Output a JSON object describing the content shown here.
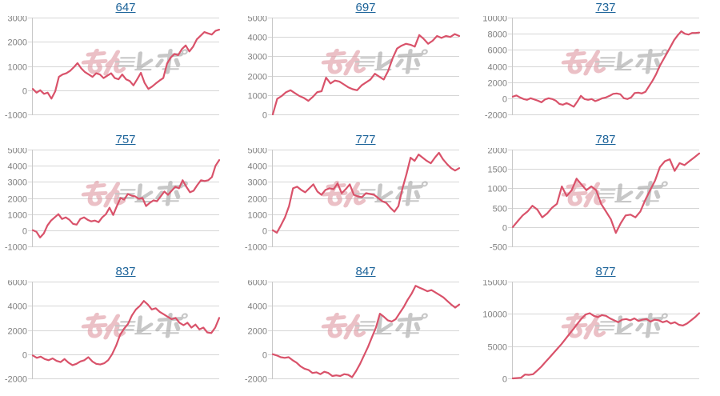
{
  "page": {
    "background": "#ffffff",
    "description": "3x3 grid of machine-number daily payout line charts"
  },
  "colors": {
    "line": "#d9526a",
    "grid": "#d6d6d6",
    "axis": "#c8c8c8",
    "tick_label": "#7f7f7f",
    "title_link": "#1c6399",
    "watermark_pink": "#e09aa4",
    "watermark_gray": "#a6a6a6"
  },
  "watermark": {
    "name": "min-repo-logo",
    "text": "みんレポ"
  },
  "chart_data": [
    {
      "type": "line",
      "title": "647",
      "xlabel": "",
      "ylabel": "",
      "ylim": [
        -1000,
        3000
      ],
      "ystep": 1000,
      "grid": true,
      "values": [
        50,
        -100,
        0,
        -150,
        -100,
        -350,
        -50,
        550,
        650,
        700,
        800,
        950,
        1120,
        900,
        750,
        650,
        550,
        700,
        650,
        500,
        600,
        700,
        500,
        450,
        650,
        450,
        380,
        200,
        450,
        720,
        300,
        50,
        150,
        280,
        400,
        500,
        1100,
        1350,
        1500,
        1450,
        1700,
        1850,
        1600,
        1800,
        2100,
        2250,
        2400,
        2350,
        2300,
        2450,
        2500
      ]
    },
    {
      "type": "line",
      "title": "697",
      "xlabel": "",
      "ylabel": "",
      "ylim": [
        0,
        5000
      ],
      "ystep": 1000,
      "grid": true,
      "values": [
        0,
        800,
        950,
        1150,
        1250,
        1100,
        950,
        850,
        700,
        900,
        1150,
        1200,
        1900,
        1600,
        1750,
        1700,
        1550,
        1400,
        1300,
        1250,
        1500,
        1650,
        1800,
        2100,
        1950,
        1800,
        2250,
        2900,
        3400,
        3550,
        3650,
        3600,
        3500,
        4100,
        3900,
        3650,
        3800,
        4050,
        3950,
        4050,
        4000,
        4150,
        4050
      ]
    },
    {
      "type": "line",
      "title": "737",
      "xlabel": "",
      "ylabel": "",
      "ylim": [
        -2000,
        10000
      ],
      "ystep": 2000,
      "grid": true,
      "values": [
        200,
        350,
        100,
        -100,
        -200,
        0,
        -150,
        -300,
        -500,
        -150,
        0,
        -100,
        -300,
        -700,
        -800,
        -600,
        -800,
        -1050,
        -400,
        300,
        -100,
        -200,
        -100,
        -350,
        -200,
        0,
        100,
        300,
        550,
        600,
        500,
        0,
        -100,
        100,
        650,
        700,
        600,
        800,
        1500,
        2200,
        3000,
        4000,
        4800,
        5600,
        6400,
        7200,
        7800,
        8300,
        8000,
        7900,
        8100,
        8100,
        8150
      ]
    },
    {
      "type": "line",
      "title": "757",
      "xlabel": "",
      "ylabel": "",
      "ylim": [
        -1000,
        5000
      ],
      "ystep": 1000,
      "grid": true,
      "values": [
        0,
        -100,
        -450,
        -200,
        300,
        600,
        800,
        1000,
        700,
        800,
        650,
        400,
        350,
        700,
        800,
        650,
        550,
        600,
        500,
        800,
        1000,
        1400,
        950,
        1500,
        2000,
        1900,
        2250,
        2150,
        2100,
        1950,
        2000,
        1500,
        1700,
        1850,
        1800,
        2100,
        2400,
        2200,
        2450,
        2700,
        2600,
        3100,
        2700,
        2350,
        2450,
        2800,
        3100,
        3050,
        3100,
        3300,
        4000,
        4350
      ]
    },
    {
      "type": "line",
      "title": "777",
      "xlabel": "",
      "ylabel": "",
      "ylim": [
        -1000,
        5000
      ],
      "ystep": 1000,
      "grid": true,
      "values": [
        0,
        -150,
        300,
        800,
        1500,
        2600,
        2700,
        2500,
        2350,
        2600,
        2850,
        2400,
        2200,
        2500,
        2600,
        2550,
        2900,
        2300,
        2550,
        2850,
        2200,
        2100,
        2050,
        2300,
        2250,
        2200,
        2000,
        1800,
        1700,
        1400,
        1150,
        1500,
        2600,
        3500,
        4500,
        4300,
        4700,
        4500,
        4300,
        4150,
        4500,
        4800,
        4400,
        4100,
        3850,
        3700,
        3850
      ]
    },
    {
      "type": "line",
      "title": "787",
      "xlabel": "",
      "ylabel": "",
      "ylim": [
        -500,
        2000
      ],
      "ystep": 500,
      "grid": true,
      "values": [
        0,
        150,
        300,
        400,
        550,
        450,
        250,
        350,
        500,
        600,
        1050,
        800,
        950,
        1250,
        1100,
        950,
        1050,
        950,
        600,
        400,
        200,
        -150,
        100,
        300,
        320,
        250,
        400,
        700,
        950,
        1200,
        1550,
        1700,
        1750,
        1450,
        1650,
        1600,
        1700,
        1800,
        1900
      ]
    },
    {
      "type": "line",
      "title": "837",
      "xlabel": "",
      "ylabel": "",
      "ylim": [
        -2000,
        6000
      ],
      "ystep": 2000,
      "grid": true,
      "values": [
        -100,
        -300,
        -200,
        -400,
        -500,
        -350,
        -550,
        -650,
        -400,
        -700,
        -900,
        -800,
        -600,
        -500,
        -250,
        -600,
        -800,
        -850,
        -750,
        -500,
        0,
        700,
        1600,
        2100,
        2500,
        3200,
        3700,
        4000,
        4400,
        4100,
        3700,
        3800,
        3500,
        3300,
        3100,
        2900,
        3000,
        2600,
        2400,
        2600,
        2200,
        2450,
        2050,
        2200,
        1800,
        1750,
        2200,
        3000
      ]
    },
    {
      "type": "line",
      "title": "847",
      "xlabel": "",
      "ylabel": "",
      "ylim": [
        -2000,
        6000
      ],
      "ystep": 2000,
      "grid": true,
      "values": [
        0,
        -100,
        -250,
        -300,
        -250,
        -500,
        -700,
        -1000,
        -1200,
        -1300,
        -1550,
        -1500,
        -1650,
        -1450,
        -1550,
        -1800,
        -1750,
        -1800,
        -1650,
        -1700,
        -1900,
        -1400,
        -800,
        -100,
        600,
        1400,
        2200,
        3350,
        3100,
        2800,
        2700,
        2900,
        3400,
        3900,
        4500,
        5000,
        5650,
        5500,
        5350,
        5200,
        5300,
        5100,
        4900,
        4700,
        4400,
        4100,
        3850,
        4100
      ]
    },
    {
      "type": "line",
      "title": "877",
      "xlabel": "",
      "ylabel": "",
      "ylim": [
        0,
        15000
      ],
      "ystep": 5000,
      "grid": true,
      "values": [
        0,
        50,
        100,
        600,
        550,
        650,
        1200,
        1800,
        2500,
        3200,
        3900,
        4600,
        5300,
        6100,
        6900,
        7700,
        8500,
        9300,
        9900,
        10100,
        9700,
        9500,
        9800,
        9700,
        9300,
        9000,
        8700,
        9100,
        9200,
        9000,
        9300,
        8900,
        9100,
        9200,
        8800,
        9100,
        9000,
        8700,
        8900,
        8500,
        8700,
        8300,
        8200,
        8500,
        9000,
        9500,
        10100
      ]
    }
  ]
}
